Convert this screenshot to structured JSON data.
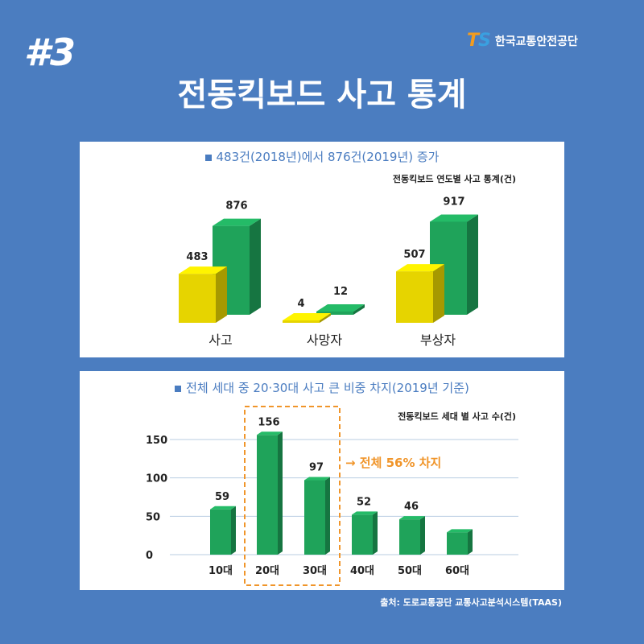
{
  "header": {
    "number": "#3",
    "logo_mark_t": "T",
    "logo_mark_s": "S",
    "logo_text": "한국교통안전공단",
    "title": "전동킥보드 사고 통계"
  },
  "colors": {
    "background": "#4b7dc0",
    "yellow_2018": "#e6d400",
    "green_2019": "#1fa35a",
    "highlight_orange": "#f0952a"
  },
  "panel1": {
    "title": "483건(2018년)에서 876건(2019년) 증가",
    "subtitle": "전동킥보드 연도별 사고 통계(건)"
  },
  "panel2": {
    "title": "전체 세대 중 20·30대 사고 큰 비중 차지(2019년 기준)",
    "subtitle": "전동킥보드 세대 별 사고 수(건)",
    "annotation": "→ 전체 56% 차지"
  },
  "source": "출처: 도로교통공단 교통사고분석시스템(TAAS)",
  "chart_data": [
    {
      "type": "bar",
      "categories": [
        "사고",
        "사망자",
        "부상자"
      ],
      "series": [
        {
          "values": [
            483,
            4,
            507
          ]
        },
        {
          "values": [
            876,
            12,
            917
          ]
        }
      ]
    },
    {
      "type": "bar",
      "categories": [
        "10대",
        "20대",
        "30대",
        "40대",
        "50대",
        "60대"
      ],
      "values": [
        59,
        156,
        97,
        52,
        46,
        29
      ],
      "value_labels": [
        "59",
        "156",
        "97",
        "52",
        "46",
        ""
      ],
      "ylim": [
        0,
        150
      ],
      "yticks": [
        0,
        50,
        100,
        150
      ],
      "grid": true
    }
  ]
}
